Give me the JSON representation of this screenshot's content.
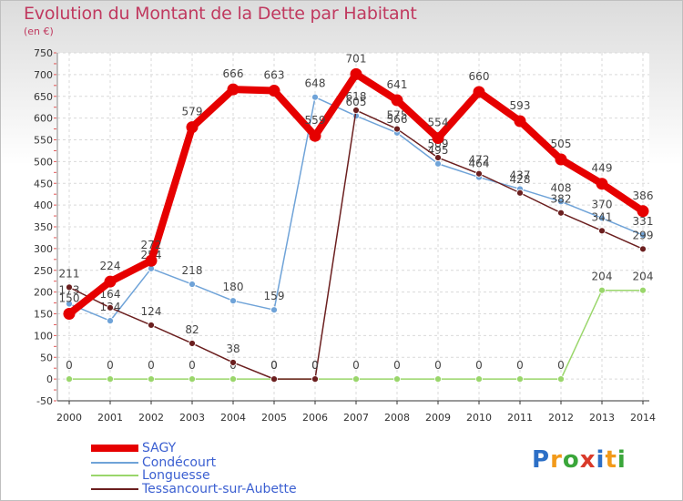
{
  "chart_data": {
    "type": "line",
    "title": "Evolution du Montant de la Dette par Habitant",
    "ylabel": "(en €)",
    "xlabel": "",
    "categories": [
      "2000",
      "2001",
      "2002",
      "2003",
      "2004",
      "2005",
      "2006",
      "2007",
      "2008",
      "2009",
      "2010",
      "2011",
      "2012",
      "2013",
      "2014"
    ],
    "ylim": [
      -50,
      750
    ],
    "yticks": [
      -50,
      0,
      50,
      100,
      150,
      200,
      250,
      300,
      350,
      400,
      450,
      500,
      550,
      600,
      650,
      700,
      750
    ],
    "grid": true,
    "series": [
      {
        "name": "SAGY",
        "color": "#e60000",
        "values": [
          150,
          224,
          272,
          579,
          666,
          663,
          559,
          701,
          641,
          554,
          660,
          593,
          505,
          449,
          386
        ]
      },
      {
        "name": "Condécourt",
        "color": "#6fa3d8",
        "values": [
          173,
          134,
          254,
          218,
          180,
          159,
          648,
          605,
          566,
          495,
          464,
          437,
          408,
          370,
          331
        ]
      },
      {
        "name": "Longuesse",
        "color": "#9ad66b",
        "values": [
          0,
          0,
          0,
          0,
          0,
          0,
          0,
          0,
          0,
          0,
          0,
          0,
          0,
          204,
          204
        ]
      },
      {
        "name": "Tessancourt-sur-Aubette",
        "color": "#6b1f1f",
        "values": [
          211,
          164,
          124,
          82,
          38,
          0,
          0,
          618,
          575,
          509,
          472,
          428,
          382,
          341,
          299
        ]
      }
    ]
  },
  "legend": {
    "sagy": "SAGY",
    "condecourt": "Condécourt",
    "longuesse": "Longuesse",
    "tessancourt": "Tessancourt-sur-Aubette"
  },
  "logo": {
    "p": "P",
    "r": "r",
    "o": "o",
    "x": "x",
    "i1": "i",
    "t": "t",
    "i2": "i"
  }
}
